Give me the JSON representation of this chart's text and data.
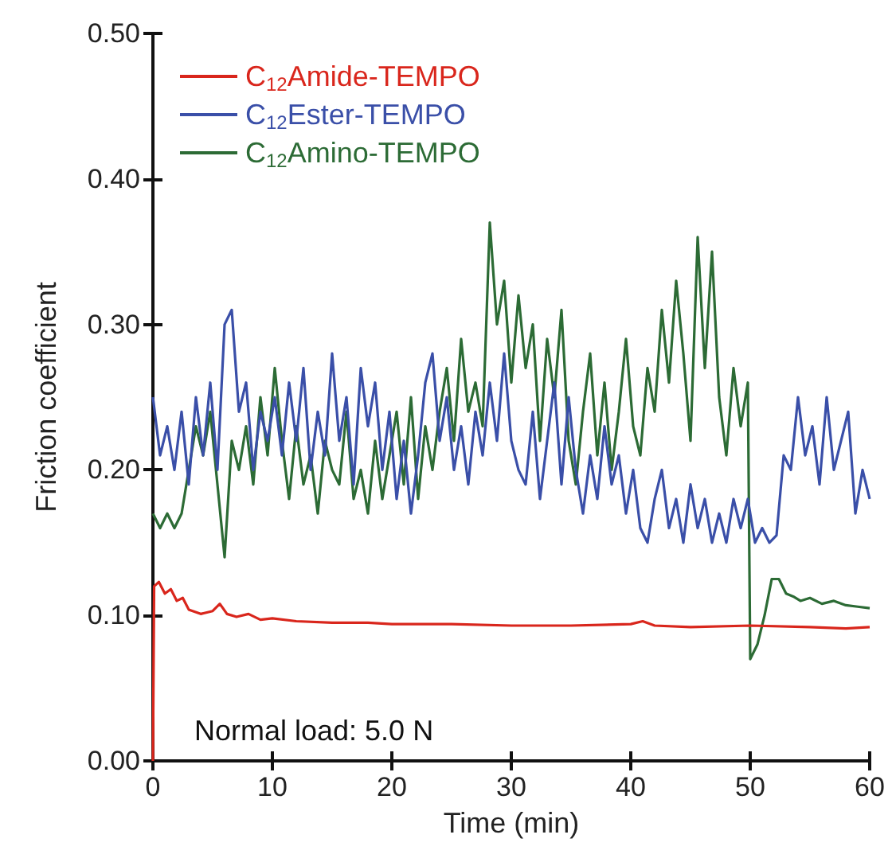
{
  "chart_data": {
    "type": "line",
    "xlabel": "Time (min)",
    "ylabel": "Friction coefficient",
    "xlim": [
      0,
      60
    ],
    "xticks": [
      0,
      10,
      20,
      30,
      40,
      50,
      60
    ],
    "ylim": [
      0,
      0.5
    ],
    "yticks": [
      {
        "value": 0,
        "label": "0.00"
      },
      {
        "value": 0.1,
        "label": "0.10"
      },
      {
        "value": 0.2,
        "label": "0.20"
      },
      {
        "value": 0.3,
        "label": "0.30"
      },
      {
        "value": 0.4,
        "label": "0.40"
      },
      {
        "value": 0.5,
        "label": "0.50"
      }
    ],
    "grid": false,
    "legend": "top left",
    "marker": "none",
    "line_style": "solid",
    "annotations": [
      "Normal load: 5.0 N"
    ],
    "series": [
      {
        "name": "C$_{12}$Amide-TEMPO",
        "color": "#d9261c",
        "x": [
          0,
          0.1,
          0.5,
          1,
          1.5,
          2,
          2.5,
          3,
          4,
          5,
          5.6,
          6.2,
          7,
          8,
          9,
          10,
          12,
          15,
          18,
          20,
          25,
          30,
          35,
          40,
          41,
          42,
          45,
          50,
          55,
          58,
          60
        ],
        "values": [
          0,
          0.12,
          0.123,
          0.115,
          0.118,
          0.11,
          0.112,
          0.104,
          0.101,
          0.103,
          0.108,
          0.101,
          0.099,
          0.101,
          0.097,
          0.098,
          0.096,
          0.095,
          0.095,
          0.094,
          0.094,
          0.093,
          0.093,
          0.094,
          0.096,
          0.093,
          0.092,
          0.093,
          0.092,
          0.091,
          0.092
        ]
      },
      {
        "name": "C$_{12}$Ester-TEMPO",
        "color": "#3a4fa8",
        "x": [
          0,
          0.6,
          1.2,
          1.8,
          2.4,
          3,
          3.6,
          4.2,
          4.8,
          5.4,
          6,
          6.6,
          7.2,
          7.8,
          8.4,
          9,
          9.6,
          10.2,
          10.8,
          11.4,
          12,
          12.6,
          13.2,
          13.8,
          14.4,
          15,
          15.6,
          16.2,
          16.8,
          17.4,
          18,
          18.6,
          19.2,
          19.8,
          20.4,
          21,
          21.6,
          22.2,
          22.8,
          23.4,
          24,
          24.6,
          25.2,
          25.8,
          26.4,
          27,
          27.6,
          28.2,
          28.8,
          29.4,
          30,
          30.6,
          31.2,
          31.8,
          32.4,
          33,
          33.6,
          34.2,
          34.8,
          35.4,
          36,
          36.6,
          37.2,
          37.8,
          38.4,
          39,
          39.6,
          40.2,
          40.8,
          41.4,
          42,
          42.6,
          43.2,
          43.8,
          44.4,
          45,
          45.6,
          46.2,
          46.8,
          47.4,
          48,
          48.6,
          49.2,
          49.8,
          50.4,
          51,
          51.6,
          52.2,
          52.8,
          53.4,
          54,
          54.6,
          55.2,
          55.8,
          56.4,
          57,
          57.6,
          58.2,
          58.8,
          59.4,
          60
        ],
        "values": [
          0.25,
          0.21,
          0.23,
          0.2,
          0.24,
          0.19,
          0.25,
          0.21,
          0.26,
          0.2,
          0.3,
          0.31,
          0.24,
          0.26,
          0.2,
          0.24,
          0.22,
          0.25,
          0.21,
          0.26,
          0.22,
          0.27,
          0.2,
          0.24,
          0.21,
          0.28,
          0.22,
          0.25,
          0.19,
          0.27,
          0.23,
          0.26,
          0.2,
          0.24,
          0.18,
          0.22,
          0.17,
          0.21,
          0.26,
          0.28,
          0.22,
          0.25,
          0.2,
          0.23,
          0.19,
          0.24,
          0.21,
          0.26,
          0.22,
          0.28,
          0.22,
          0.2,
          0.19,
          0.24,
          0.18,
          0.22,
          0.26,
          0.19,
          0.25,
          0.2,
          0.17,
          0.21,
          0.18,
          0.23,
          0.19,
          0.21,
          0.17,
          0.2,
          0.16,
          0.15,
          0.18,
          0.2,
          0.16,
          0.18,
          0.15,
          0.19,
          0.16,
          0.18,
          0.15,
          0.17,
          0.15,
          0.18,
          0.16,
          0.18,
          0.15,
          0.16,
          0.15,
          0.155,
          0.21,
          0.2,
          0.25,
          0.21,
          0.23,
          0.19,
          0.25,
          0.2,
          0.22,
          0.24,
          0.17,
          0.2,
          0.18
        ]
      },
      {
        "name": "C$_{12}$Amino-TEMPO",
        "color": "#2c6b35",
        "x": [
          0,
          0.6,
          1.2,
          1.8,
          2.4,
          3,
          3.6,
          4.2,
          4.8,
          5.4,
          6,
          6.6,
          7.2,
          7.8,
          8.4,
          9,
          9.6,
          10.2,
          10.8,
          11.4,
          12,
          12.6,
          13.2,
          13.8,
          14.4,
          15,
          15.6,
          16.2,
          16.8,
          17.4,
          18,
          18.6,
          19.2,
          19.8,
          20.4,
          21,
          21.6,
          22.2,
          22.8,
          23.4,
          24,
          24.6,
          25.2,
          25.8,
          26.4,
          27,
          27.6,
          28.2,
          28.8,
          29.4,
          30,
          30.6,
          31.2,
          31.8,
          32.4,
          33,
          33.6,
          34.2,
          34.8,
          35.4,
          36,
          36.6,
          37.2,
          37.8,
          38.4,
          39,
          39.6,
          40.2,
          40.8,
          41.4,
          42,
          42.6,
          43.2,
          43.8,
          44.4,
          45,
          45.6,
          46.2,
          46.8,
          47.4,
          48,
          48.6,
          49.2,
          49.8,
          50,
          50.6,
          51.2,
          51.8,
          52.4,
          53,
          53.6,
          54.2,
          55,
          56,
          57,
          58,
          59,
          60
        ],
        "values": [
          0.17,
          0.16,
          0.17,
          0.16,
          0.17,
          0.2,
          0.23,
          0.21,
          0.24,
          0.19,
          0.14,
          0.22,
          0.2,
          0.23,
          0.19,
          0.25,
          0.21,
          0.27,
          0.22,
          0.18,
          0.23,
          0.19,
          0.21,
          0.17,
          0.22,
          0.2,
          0.19,
          0.24,
          0.18,
          0.2,
          0.17,
          0.22,
          0.18,
          0.21,
          0.24,
          0.19,
          0.25,
          0.18,
          0.23,
          0.2,
          0.24,
          0.27,
          0.22,
          0.29,
          0.24,
          0.26,
          0.23,
          0.37,
          0.3,
          0.33,
          0.26,
          0.32,
          0.27,
          0.3,
          0.22,
          0.29,
          0.25,
          0.31,
          0.22,
          0.19,
          0.24,
          0.28,
          0.21,
          0.26,
          0.2,
          0.24,
          0.29,
          0.23,
          0.21,
          0.27,
          0.24,
          0.31,
          0.26,
          0.33,
          0.28,
          0.22,
          0.36,
          0.27,
          0.35,
          0.25,
          0.21,
          0.27,
          0.23,
          0.26,
          0.07,
          0.08,
          0.1,
          0.125,
          0.125,
          0.115,
          0.113,
          0.11,
          0.112,
          0.108,
          0.11,
          0.107,
          0.106,
          0.105
        ]
      }
    ]
  }
}
